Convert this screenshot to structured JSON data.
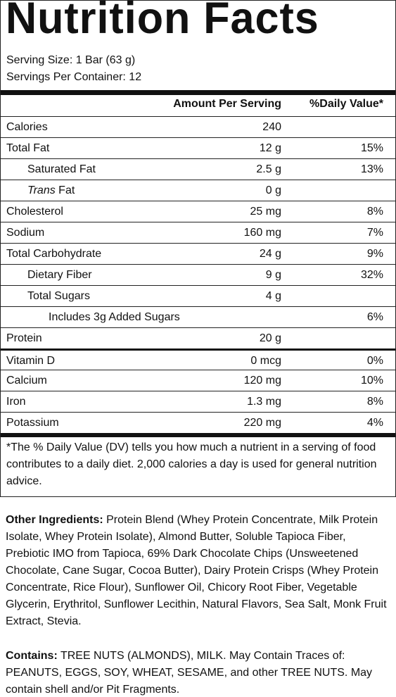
{
  "panel": {
    "title": "Nutrition Facts",
    "serving_size": "Serving Size: 1 Bar (63 g)",
    "servings_per_container": "Servings Per Container: 12",
    "header_amount": "Amount Per Serving",
    "header_dv": "%Daily Value*",
    "calories": {
      "name": "Calories",
      "amount": "240",
      "dv": ""
    },
    "total_fat": {
      "name": "Total Fat",
      "amount": "12 g",
      "dv": "15%"
    },
    "saturated_fat": {
      "name": "Saturated Fat",
      "amount": "2.5 g",
      "dv": "13%"
    },
    "trans_fat": {
      "name_italic": "Trans",
      "name_rest": " Fat",
      "amount": "0 g",
      "dv": ""
    },
    "cholesterol": {
      "name": "Cholesterol",
      "amount": "25 mg",
      "dv": "8%"
    },
    "sodium": {
      "name": "Sodium",
      "amount": "160 mg",
      "dv": "7%"
    },
    "total_carbohydrate": {
      "name": "Total Carbohydrate",
      "amount": "24 g",
      "dv": "9%"
    },
    "dietary_fiber": {
      "name": "Dietary Fiber",
      "amount": "9 g",
      "dv": "32%"
    },
    "total_sugars": {
      "name": "Total Sugars",
      "amount": "4 g",
      "dv": ""
    },
    "added_sugars": {
      "name": "Includes 3g Added Sugars",
      "amount": "",
      "dv": "6%"
    },
    "protein": {
      "name": "Protein",
      "amount": "20 g",
      "dv": ""
    },
    "vitamin_d": {
      "name": "Vitamin D",
      "amount": "0 mcg",
      "dv": "0%"
    },
    "calcium": {
      "name": "Calcium",
      "amount": "120 mg",
      "dv": "10%"
    },
    "iron": {
      "name": "Iron",
      "amount": "1.3 mg",
      "dv": "8%"
    },
    "potassium": {
      "name": "Potassium",
      "amount": "220 mg",
      "dv": "4%"
    },
    "footnote": "*The % Daily Value (DV) tells you how much a nutrient in a serving of food contributes to a daily diet. 2,000 calories a day is used for general nutrition advice."
  },
  "ingredients": {
    "label": "Other Ingredients:",
    "text": " Protein Blend (Whey Protein Concentrate, Milk Protein Isolate, Whey Protein Isolate), Almond Butter, Soluble Tapioca Fiber, Prebiotic IMO from Tapioca, 69% Dark Chocolate Chips (Unsweetened Chocolate, Cane Sugar, Cocoa Butter), Dairy Protein Crisps (Whey Protein Concentrate, Rice Flour), Sunflower Oil, Chicory Root Fiber, Vegetable Glycerin, Erythritol, Sunflower Lecithin, Natural Flavors, Sea Salt, Monk Fruit Extract, Stevia."
  },
  "contains": {
    "label": "Contains:",
    "text": " TREE NUTS (ALMONDS), MILK. May Contain Traces of: PEANUTS, EGGS, SOY, WHEAT, SESAME, and other TREE NUTS. May contain shell and/or Pit Fragments."
  }
}
